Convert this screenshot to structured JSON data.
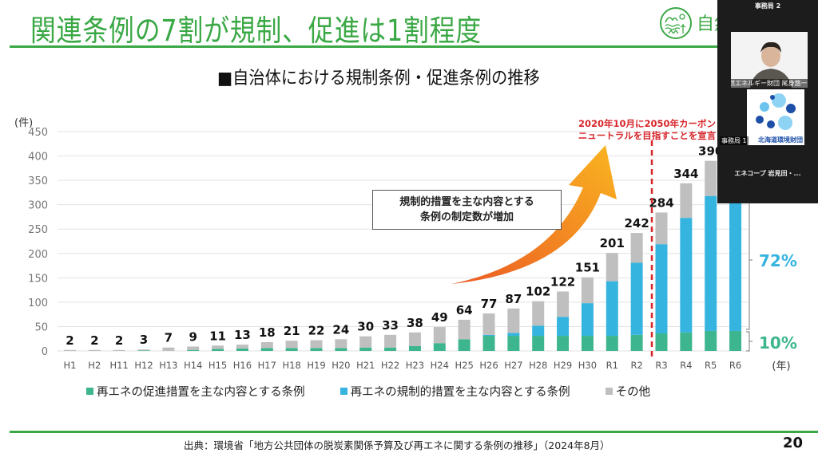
{
  "slide": {
    "title": "関連条例の7割が規制、促進は1割程度",
    "logo_text": "自然",
    "subtitle": "■自治体における規制条例・促進条例の推移",
    "callout_lines": [
      "規制的措置を主な内容とする",
      "条例の制定数が増加"
    ],
    "annotation_lines": [
      "2020年10月に2050年カーボン",
      "ニュートラルを目指すことを宣言"
    ],
    "share_labels": {
      "regulation": "72%",
      "promotion": "10%"
    },
    "source": "出典：環境省「地方公共団体の脱炭素関係予算及び再エネに関する条例の推移」（2024年8月）",
    "page_number": "20",
    "colors": {
      "promotion": "#3db58e",
      "regulation": "#35b4e0",
      "other": "#bfbfbf",
      "title_green": "#3aa845",
      "annotation_red": "#d7262b",
      "arrow_start": "#ec5a24",
      "arrow_end": "#f9b520"
    }
  },
  "video_panel": {
    "top_label": "事務局 2",
    "participant1_label": "自然エネルギー財団 尾身悠一郎",
    "participant2_label": "事務局 1",
    "participant2_org": "北海道環境財団",
    "bottom_label": "エネコープ 岩見田・..."
  },
  "chart_data": {
    "type": "bar",
    "stacked": true,
    "title": "自治体における規制条例・促進条例の推移",
    "xlabel": "(年)",
    "ylabel": "(件)",
    "ylim": [
      0,
      450
    ],
    "yticks": [
      0,
      50,
      100,
      150,
      200,
      250,
      300,
      350,
      400,
      450
    ],
    "grid": true,
    "legend_position": "bottom",
    "categories": [
      "H1",
      "H2",
      "H11",
      "H12",
      "H13",
      "H14",
      "H15",
      "H16",
      "H17",
      "H18",
      "H19",
      "H20",
      "H21",
      "H22",
      "H23",
      "H24",
      "H25",
      "H26",
      "H27",
      "H28",
      "H29",
      "H30",
      "R1",
      "R2",
      "R3",
      "R4",
      "R5",
      "R6"
    ],
    "totals_labels": [
      "2",
      "2",
      "2",
      "3",
      "7",
      "9",
      "11",
      "13",
      "18",
      "21",
      "22",
      "24",
      "30",
      "33",
      "38",
      "49",
      "64",
      "77",
      "87",
      "102",
      "122",
      "151",
      "201",
      "242",
      "284",
      "344",
      "390",
      ""
    ],
    "series": [
      {
        "name": "再エネの促進措置を主な内容とする条例",
        "key": "promotion",
        "values": [
          0,
          0,
          0,
          1,
          0,
          2,
          4,
          5,
          6,
          6,
          6,
          6,
          7,
          7,
          10,
          16,
          24,
          31,
          31,
          31,
          31,
          31,
          31,
          33,
          36,
          38,
          41,
          41
        ]
      },
      {
        "name": "再エネの規制的措置を主な内容とする条例",
        "key": "regulation",
        "values": [
          0,
          0,
          0,
          0,
          0,
          0,
          0,
          0,
          0,
          0,
          0,
          0,
          0,
          0,
          0,
          0,
          0,
          2,
          6,
          21,
          39,
          67,
          112,
          148,
          183,
          235,
          277,
          298
        ]
      },
      {
        "name": "その他",
        "key": "other",
        "values": [
          2,
          2,
          2,
          2,
          7,
          7,
          7,
          8,
          12,
          15,
          16,
          18,
          23,
          26,
          28,
          33,
          40,
          44,
          50,
          50,
          52,
          53,
          58,
          61,
          65,
          71,
          72,
          75
        ]
      }
    ],
    "annotations": [
      {
        "text": "2020年10月に2050年カーボンニュートラルを目指すことを宣言",
        "between": [
          "R2",
          "R3"
        ],
        "style": "red-dashed-line"
      },
      {
        "text": "規制的措置を主な内容とする条例の制定数が増加",
        "style": "callout-with-arrow"
      },
      {
        "text": "72%",
        "applies_to": "R6 regulation share"
      },
      {
        "text": "10%",
        "applies_to": "R6 promotion share"
      }
    ]
  }
}
